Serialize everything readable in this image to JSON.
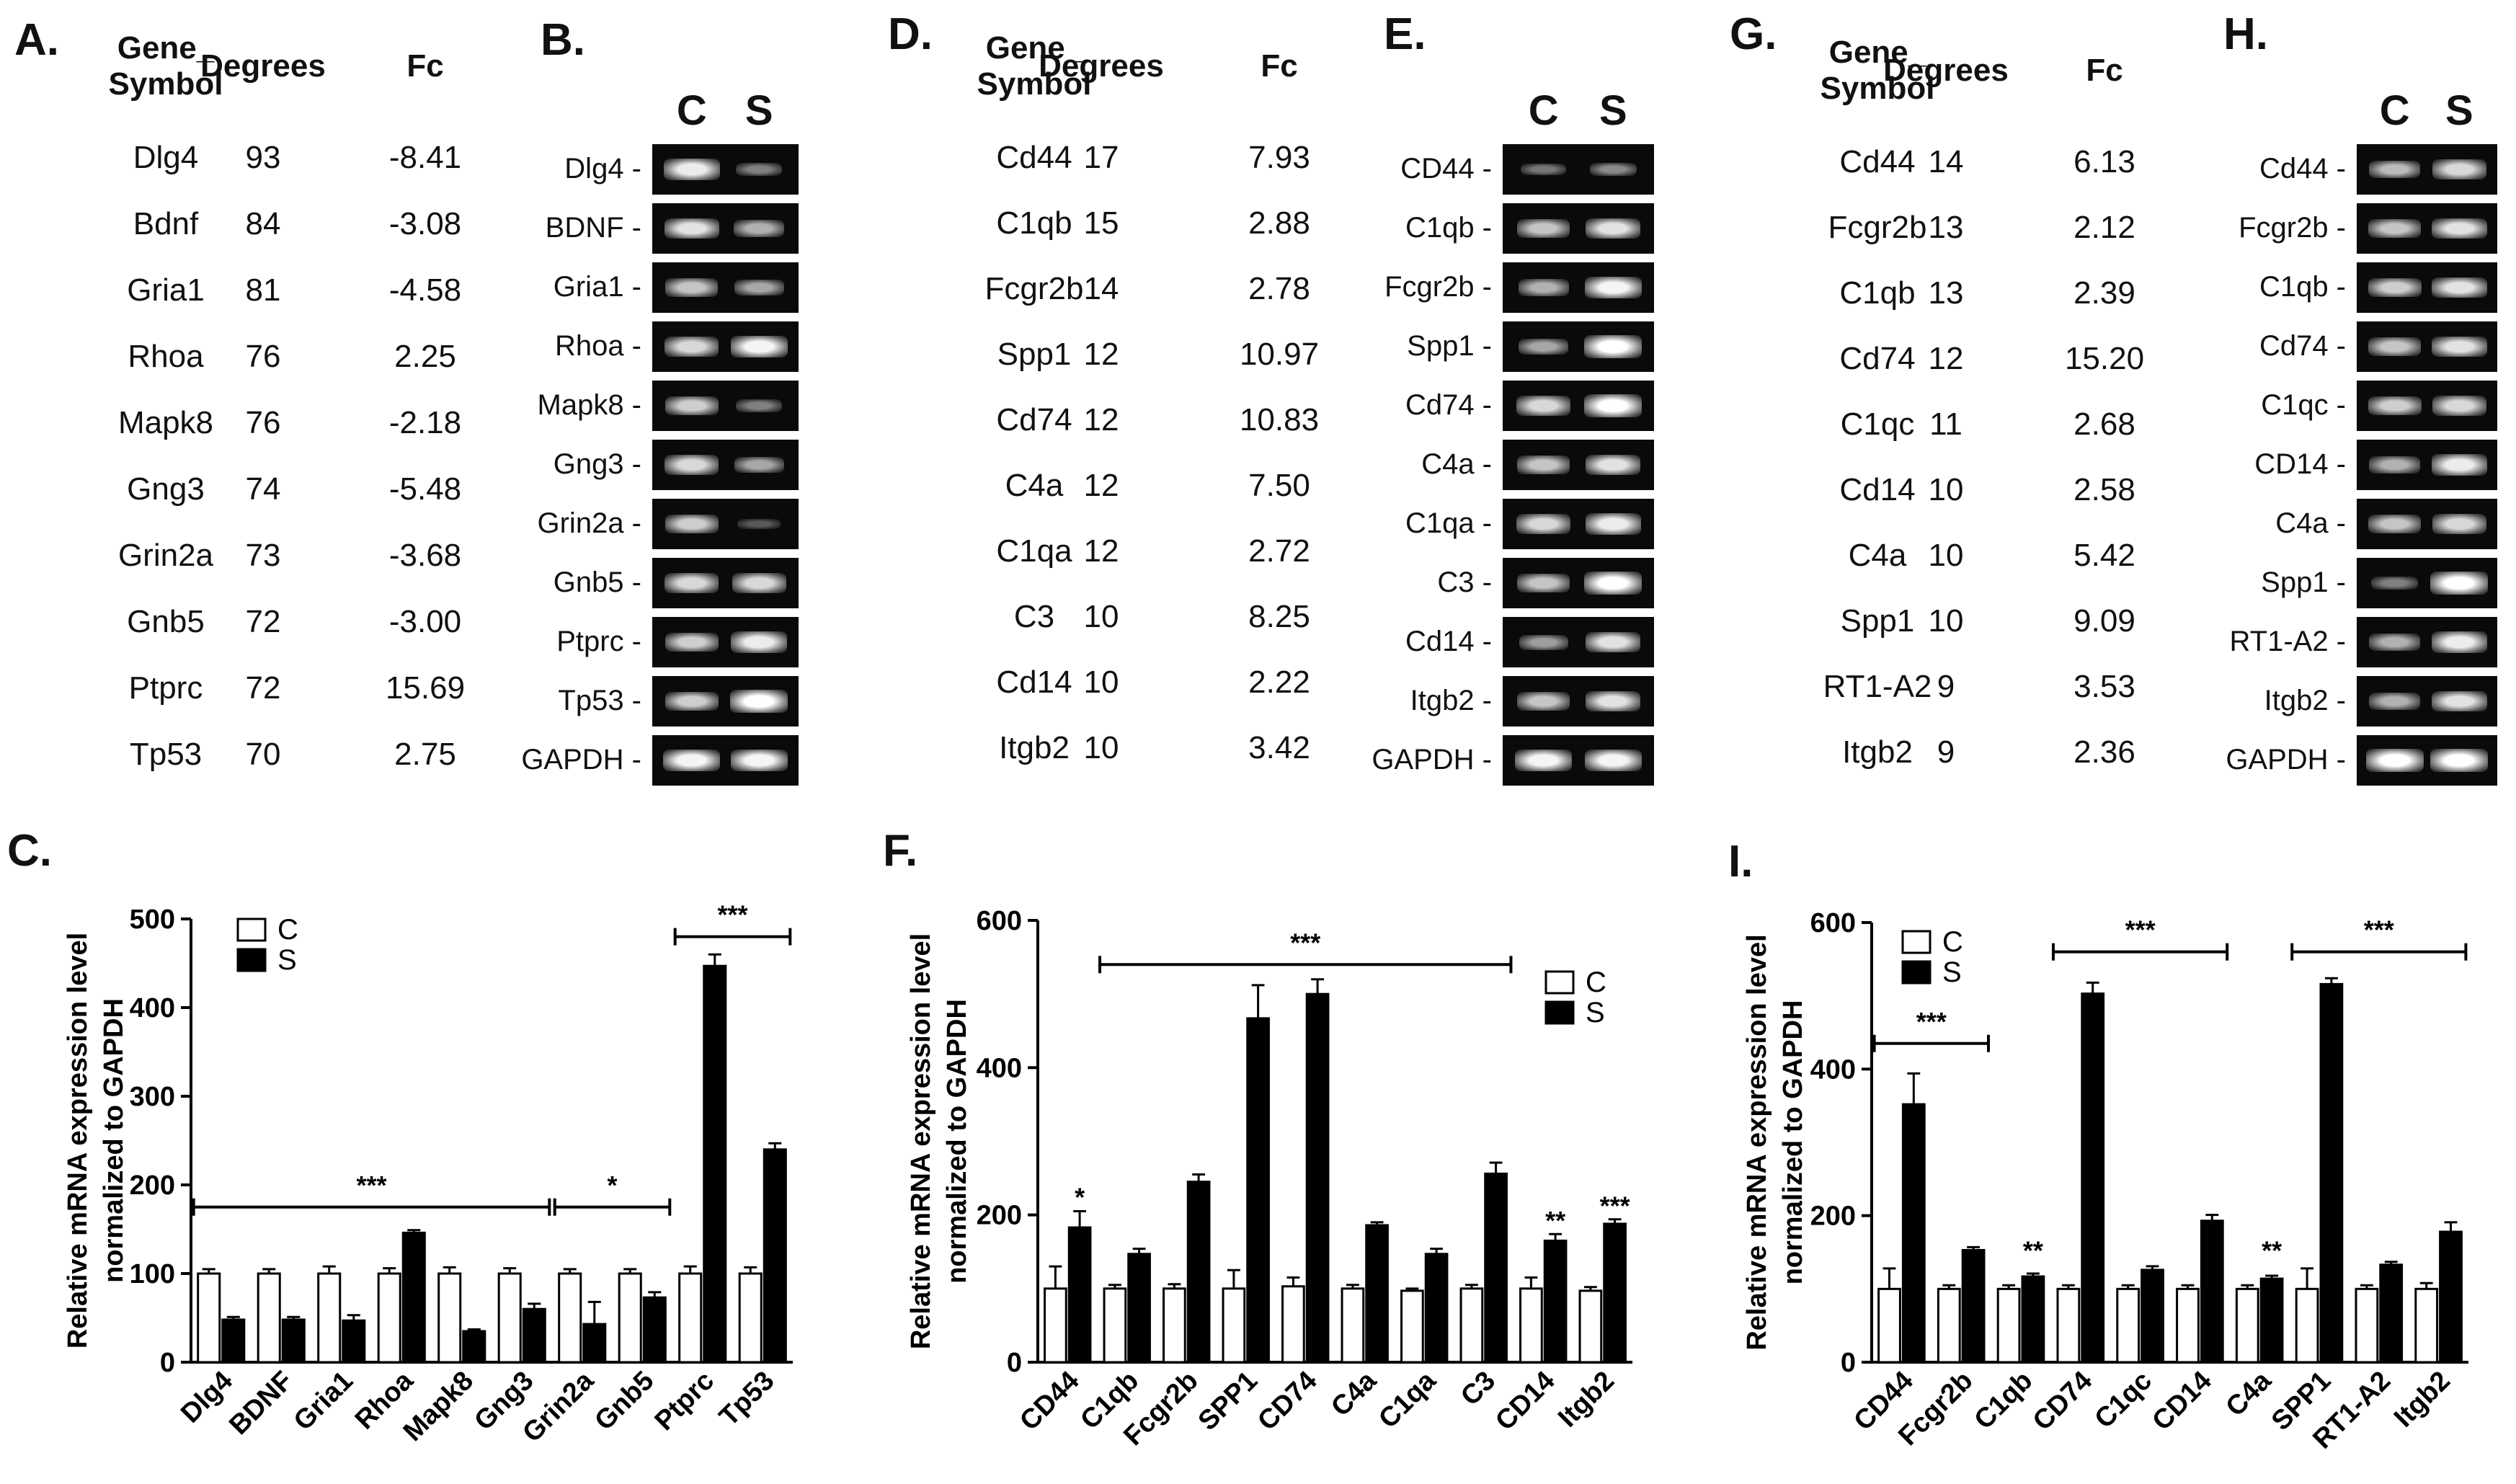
{
  "panels": {
    "A": {
      "letter": "A.",
      "headers": {
        "gene": "Gene_\nSymbol",
        "degrees": "Degrees",
        "fc": "Fc"
      },
      "rows": [
        {
          "gene": "Dlg4",
          "degrees": "93",
          "fc": "-8.41"
        },
        {
          "gene": "Bdnf",
          "degrees": "84",
          "fc": "-3.08"
        },
        {
          "gene": "Gria1",
          "degrees": "81",
          "fc": "-4.58"
        },
        {
          "gene": "Rhoa",
          "degrees": "76",
          "fc": "2.25"
        },
        {
          "gene": "Mapk8",
          "degrees": "76",
          "fc": "-2.18"
        },
        {
          "gene": "Gng3",
          "degrees": "74",
          "fc": "-5.48"
        },
        {
          "gene": "Grin2a",
          "degrees": "73",
          "fc": "-3.68"
        },
        {
          "gene": "Gnb5",
          "degrees": "72",
          "fc": "-3.00"
        },
        {
          "gene": "Ptprc",
          "degrees": "72",
          "fc": "15.69"
        },
        {
          "gene": "Tp53",
          "degrees": "70",
          "fc": "2.75"
        }
      ]
    },
    "B": {
      "letter": "B.",
      "col_c": "C",
      "col_s": "S",
      "lanes": [
        {
          "label": "Dlg4 -",
          "c": 0.9,
          "s": 0.35
        },
        {
          "label": "BDNF -",
          "c": 0.85,
          "s": 0.6
        },
        {
          "label": "Gria1 -",
          "c": 0.7,
          "s": 0.55
        },
        {
          "label": "Rhoa -",
          "c": 0.8,
          "s": 0.95
        },
        {
          "label": "Mapk8 -",
          "c": 0.75,
          "s": 0.35
        },
        {
          "label": "Gng3 -",
          "c": 0.8,
          "s": 0.55
        },
        {
          "label": "Grin2a -",
          "c": 0.75,
          "s": 0.15
        },
        {
          "label": "Gnb5 -",
          "c": 0.8,
          "s": 0.8
        },
        {
          "label": "Ptprc -",
          "c": 0.75,
          "s": 0.9
        },
        {
          "label": "Tp53 -",
          "c": 0.75,
          "s": 1.0
        },
        {
          "label": "GAPDH -",
          "c": 0.95,
          "s": 0.95
        }
      ]
    },
    "D": {
      "letter": "D.",
      "headers": {
        "gene": "Gene_\nSymbol",
        "degrees": "Degrees",
        "fc": "Fc"
      },
      "rows": [
        {
          "gene": "Cd44",
          "degrees": "17",
          "fc": "7.93"
        },
        {
          "gene": "C1qb",
          "degrees": "15",
          "fc": "2.88"
        },
        {
          "gene": "Fcgr2b",
          "degrees": "14",
          "fc": "2.78"
        },
        {
          "gene": "Spp1",
          "degrees": "12",
          "fc": "10.97"
        },
        {
          "gene": "Cd74",
          "degrees": "12",
          "fc": "10.83"
        },
        {
          "gene": "C4a",
          "degrees": "12",
          "fc": "7.50"
        },
        {
          "gene": "C1qa",
          "degrees": "12",
          "fc": "2.72"
        },
        {
          "gene": "C3",
          "degrees": "10",
          "fc": "8.25"
        },
        {
          "gene": "Cd14",
          "degrees": "10",
          "fc": "2.22"
        },
        {
          "gene": "Itgb2",
          "degrees": "10",
          "fc": "3.42"
        }
      ]
    },
    "E": {
      "letter": "E.",
      "col_c": "C",
      "col_s": "S",
      "lanes": [
        {
          "label": "CD44 -",
          "c": 0.3,
          "s": 0.4
        },
        {
          "label": "C1qb -",
          "c": 0.7,
          "s": 0.85
        },
        {
          "label": "Fcgr2b -",
          "c": 0.6,
          "s": 0.95
        },
        {
          "label": "Spp1 -",
          "c": 0.55,
          "s": 1.0
        },
        {
          "label": "Cd74 -",
          "c": 0.8,
          "s": 1.0
        },
        {
          "label": "C4a -",
          "c": 0.7,
          "s": 0.85
        },
        {
          "label": "C1qa -",
          "c": 0.8,
          "s": 0.9
        },
        {
          "label": "C3 -",
          "c": 0.7,
          "s": 1.0
        },
        {
          "label": "Cd14 -",
          "c": 0.5,
          "s": 0.85
        },
        {
          "label": "Itgb2 -",
          "c": 0.7,
          "s": 0.85
        },
        {
          "label": "GAPDH -",
          "c": 0.95,
          "s": 0.95
        }
      ]
    },
    "G": {
      "letter": "G.",
      "headers": {
        "gene": "Gene_\nSymbol",
        "degrees": "Degrees",
        "fc": "Fc"
      },
      "rows": [
        {
          "gene": "Cd44",
          "degrees": "14",
          "fc": "6.13"
        },
        {
          "gene": "Fcgr2b",
          "degrees": "13",
          "fc": "2.12"
        },
        {
          "gene": "C1qb",
          "degrees": "13",
          "fc": "2.39"
        },
        {
          "gene": "Cd74",
          "degrees": "12",
          "fc": "15.20"
        },
        {
          "gene": "C1qc",
          "degrees": "11",
          "fc": "2.68"
        },
        {
          "gene": "Cd14",
          "degrees": "10",
          "fc": "2.58"
        },
        {
          "gene": "C4a",
          "degrees": "10",
          "fc": "5.42"
        },
        {
          "gene": "Spp1",
          "degrees": "10",
          "fc": "9.09"
        },
        {
          "gene": "RT1-A2",
          "degrees": "9",
          "fc": "3.53"
        },
        {
          "gene": "Itgb2",
          "degrees": "9",
          "fc": "2.36"
        }
      ]
    },
    "H": {
      "letter": "H.",
      "col_c": "C",
      "col_s": "S",
      "lanes": [
        {
          "label": "Cd44 -",
          "c": 0.65,
          "s": 0.8
        },
        {
          "label": "Fcgr2b -",
          "c": 0.7,
          "s": 0.85
        },
        {
          "label": "C1qb -",
          "c": 0.75,
          "s": 0.85
        },
        {
          "label": "Cd74 -",
          "c": 0.7,
          "s": 0.85
        },
        {
          "label": "C1qc -",
          "c": 0.75,
          "s": 0.8
        },
        {
          "label": "CD14 -",
          "c": 0.6,
          "s": 0.9
        },
        {
          "label": "C4a -",
          "c": 0.7,
          "s": 0.8
        },
        {
          "label": "Spp1 -",
          "c": 0.35,
          "s": 1.0
        },
        {
          "label": "RT1-A2 -",
          "c": 0.6,
          "s": 0.9
        },
        {
          "label": "Itgb2 -",
          "c": 0.6,
          "s": 0.85
        },
        {
          "label": "GAPDH -",
          "c": 1.0,
          "s": 1.0
        }
      ]
    },
    "C": {
      "letter": "C."
    },
    "F": {
      "letter": "F."
    },
    "I": {
      "letter": "I."
    }
  },
  "chart_data": [
    {
      "id": "C",
      "type": "bar",
      "ylabel": "Relative mRNA expression level\nnormalized to GAPDH",
      "ylim": [
        0,
        500
      ],
      "yticks": [
        0,
        100,
        200,
        300,
        400,
        500
      ],
      "legend": [
        "C",
        "S"
      ],
      "legend_position": "top-left",
      "categories": [
        "Dlg4",
        "BDNF",
        "Gria1",
        "Rhoa",
        "Mapk8",
        "Gng3",
        "Grin2a",
        "Gnb5",
        "Ptprc",
        "Tp53"
      ],
      "series": [
        {
          "name": "C",
          "values": [
            100,
            100,
            100,
            100,
            100,
            100,
            100,
            100,
            100,
            100
          ],
          "errors": [
            5,
            5,
            8,
            6,
            7,
            6,
            5,
            5,
            8,
            7
          ]
        },
        {
          "name": "S",
          "values": [
            48,
            48,
            47,
            146,
            35,
            60,
            43,
            73,
            447,
            240
          ],
          "errors": [
            3,
            3,
            6,
            3,
            2,
            6,
            25,
            6,
            13,
            7
          ]
        }
      ],
      "significance": [
        {
          "from": 0,
          "to": 5,
          "label": "***",
          "y": 175
        },
        {
          "from": 6,
          "to": 7,
          "label": "*",
          "y": 175
        },
        {
          "from": 8,
          "to": 9,
          "label": "***",
          "y": 480
        }
      ]
    },
    {
      "id": "F",
      "type": "bar",
      "ylabel": "Relative mRNA expression level\nnormalized to GAPDH",
      "ylim": [
        0,
        600
      ],
      "yticks": [
        0,
        200,
        400,
        600
      ],
      "legend": [
        "C",
        "S"
      ],
      "legend_position": "top-right",
      "categories": [
        "CD44",
        "C1qb",
        "Fcgr2b",
        "SPP1",
        "CD74",
        "C4a",
        "C1qa",
        "C3",
        "CD14",
        "Itgb2"
      ],
      "series": [
        {
          "name": "C",
          "values": [
            100,
            100,
            100,
            100,
            103,
            100,
            97,
            100,
            100,
            97
          ],
          "errors": [
            30,
            5,
            6,
            25,
            12,
            5,
            3,
            5,
            15,
            5
          ]
        },
        {
          "name": "S",
          "values": [
            183,
            147,
            245,
            467,
            500,
            186,
            147,
            256,
            165,
            188
          ],
          "errors": [
            22,
            7,
            10,
            45,
            20,
            4,
            7,
            15,
            9,
            6
          ]
        }
      ],
      "significance": [
        {
          "from": 1,
          "to": 7,
          "label": "***",
          "y": 540
        },
        {
          "marker": 0,
          "label": "*",
          "y": 212
        },
        {
          "marker": 8,
          "label": "**",
          "y": 180
        },
        {
          "marker": 9,
          "label": "***",
          "y": 200
        }
      ]
    },
    {
      "id": "I",
      "type": "bar",
      "ylabel": "Relative mRNA expression level\nnormalized to GAPDH",
      "ylim": [
        0,
        600
      ],
      "yticks": [
        0,
        200,
        400,
        600
      ],
      "legend": [
        "C",
        "S"
      ],
      "legend_position": "top-left",
      "categories": [
        "CD44",
        "Fcgr2b",
        "C1qb",
        "CD74",
        "C1qc",
        "CD14",
        "C4a",
        "SPP1",
        "RT1-A2",
        "Itgb2"
      ],
      "series": [
        {
          "name": "C",
          "values": [
            100,
            100,
            100,
            100,
            100,
            100,
            100,
            100,
            100,
            100
          ],
          "errors": [
            28,
            5,
            5,
            5,
            5,
            5,
            5,
            28,
            5,
            8
          ]
        },
        {
          "name": "S",
          "values": [
            352,
            153,
            117,
            503,
            126,
            193,
            114,
            516,
            133,
            178
          ],
          "errors": [
            42,
            4,
            4,
            15,
            5,
            8,
            4,
            8,
            4,
            13
          ]
        }
      ],
      "significance": [
        {
          "from": 0,
          "to": 1,
          "label": "***",
          "y": 435
        },
        {
          "from": 3,
          "to": 5,
          "label": "***",
          "y": 560
        },
        {
          "from": 7,
          "to": 9,
          "label": "***",
          "y": 560
        },
        {
          "marker": 2,
          "label": "**",
          "y": 140
        },
        {
          "marker": 6,
          "label": "**",
          "y": 140
        }
      ]
    }
  ]
}
